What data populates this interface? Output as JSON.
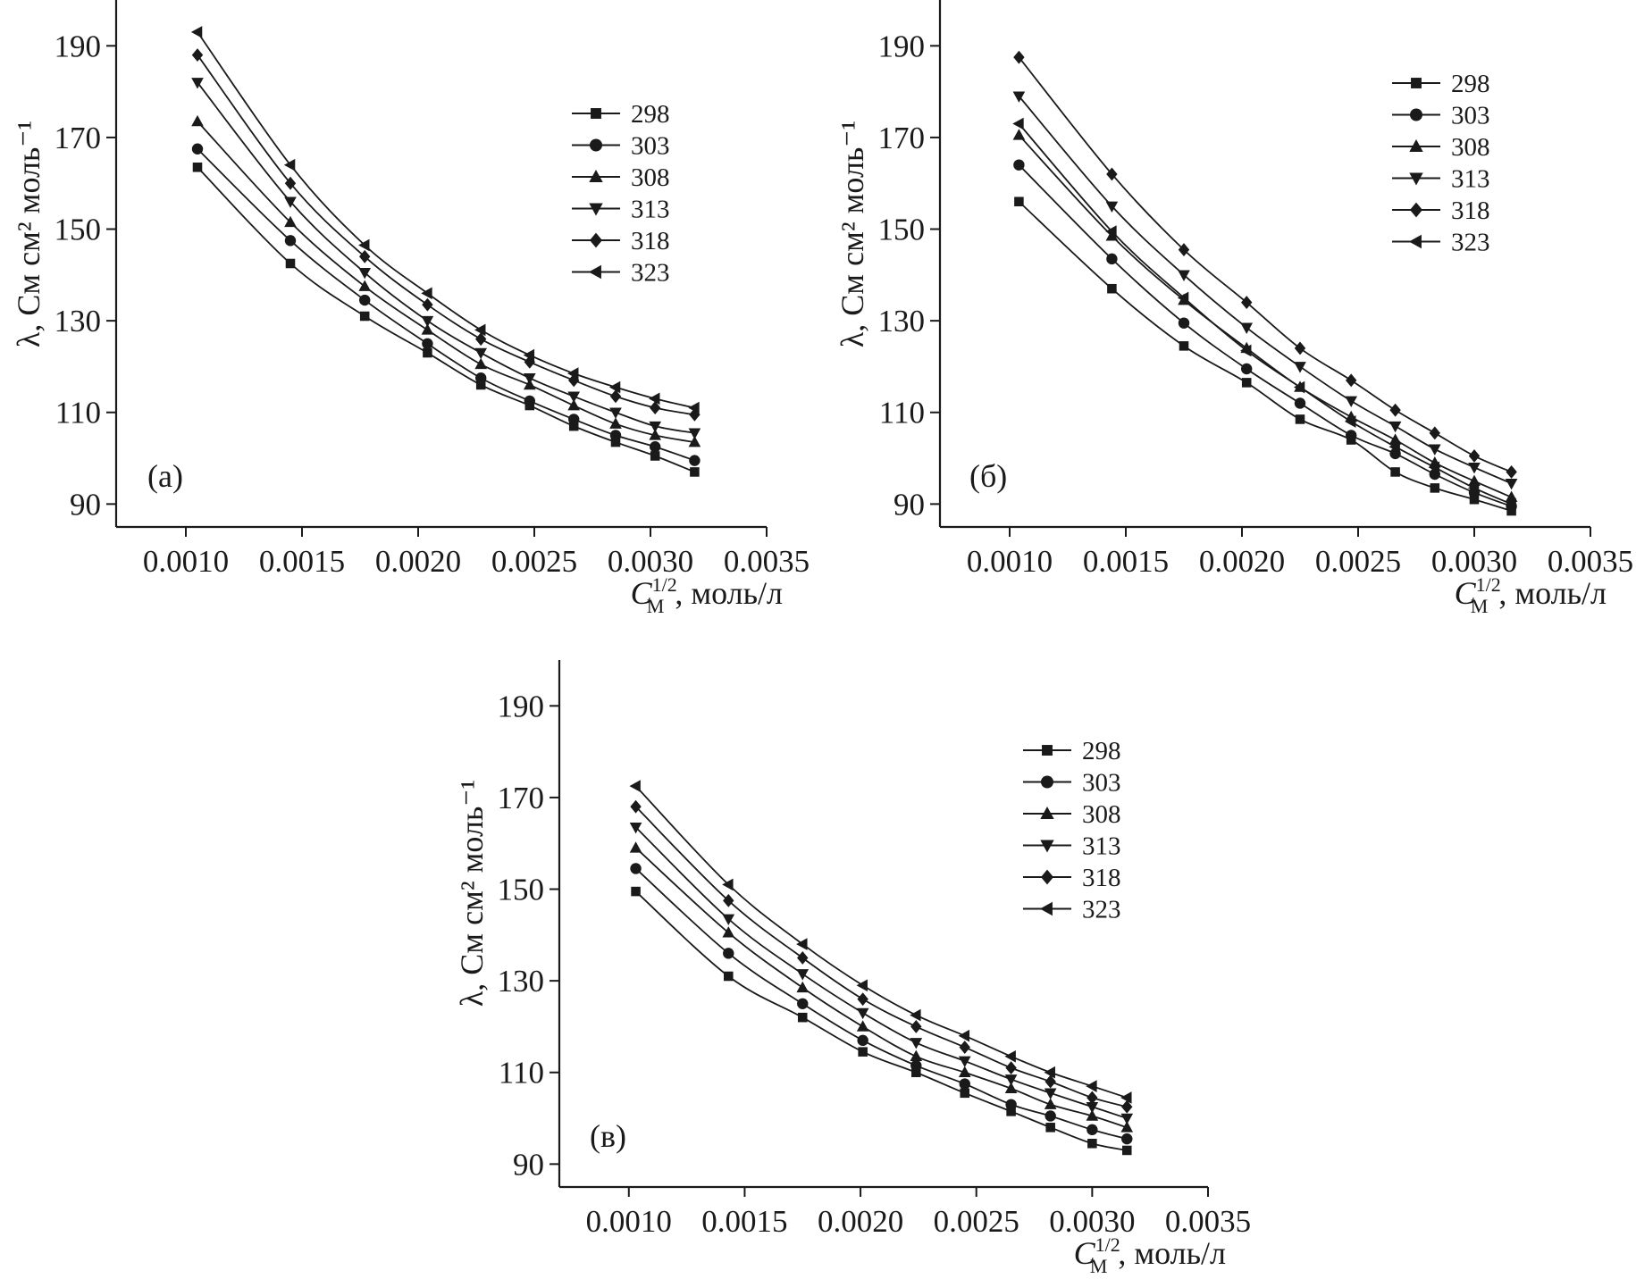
{
  "chart_data": [
    {
      "type": "line",
      "panel_label": "(а)",
      "ylabel": "λ, См см² моль⁻¹",
      "xlabel": {
        "symbol": "C",
        "superscript": "1/2",
        "subscript": "M",
        "unit": ", моль/л"
      },
      "xlim": [
        0.0007,
        0.0035
      ],
      "ylim": [
        85,
        200
      ],
      "xticks": [
        "0.0010",
        "0.0015",
        "0.0020",
        "0.0025",
        "0.0030",
        "0.0035"
      ],
      "yticks": [
        "90",
        "110",
        "130",
        "150",
        "170",
        "190"
      ],
      "x": [
        0.00105,
        0.00145,
        0.00177,
        0.00204,
        0.00227,
        0.00248,
        0.00267,
        0.00285,
        0.00302,
        0.00319
      ],
      "legend_position": "top-right",
      "series": [
        {
          "name": "298",
          "marker": "square",
          "values": [
            163.5,
            142.5,
            131.0,
            123.0,
            116.0,
            111.5,
            107.0,
            103.5,
            100.5,
            97.0
          ]
        },
        {
          "name": "303",
          "marker": "circle",
          "values": [
            167.5,
            147.5,
            134.5,
            125.0,
            117.5,
            112.5,
            108.5,
            105.0,
            102.5,
            99.5
          ]
        },
        {
          "name": "308",
          "marker": "triangle-up",
          "values": [
            173.5,
            151.5,
            137.5,
            128.0,
            120.5,
            116.0,
            111.5,
            107.5,
            105.0,
            103.5
          ]
        },
        {
          "name": "313",
          "marker": "triangle-down",
          "values": [
            182.0,
            156.0,
            140.5,
            130.0,
            123.0,
            117.5,
            113.5,
            110.0,
            107.0,
            105.5
          ]
        },
        {
          "name": "318",
          "marker": "diamond",
          "values": [
            188.0,
            160.0,
            144.0,
            133.5,
            126.0,
            121.0,
            117.0,
            113.5,
            111.0,
            109.5
          ]
        },
        {
          "name": "323",
          "marker": "triangle-left",
          "values": [
            193.0,
            164.0,
            146.5,
            136.0,
            128.0,
            122.5,
            118.5,
            115.5,
            113.0,
            111.0
          ]
        }
      ]
    },
    {
      "type": "line",
      "panel_label": "(б)",
      "ylabel": "λ, См см² моль⁻¹",
      "xlabel": {
        "symbol": "C",
        "superscript": "1/2",
        "subscript": "M",
        "unit": ", моль/л"
      },
      "xlim": [
        0.0007,
        0.0035
      ],
      "ylim": [
        85,
        200
      ],
      "xticks": [
        "0.0010",
        "0.0015",
        "0.0020",
        "0.0025",
        "0.0030",
        "0.0035"
      ],
      "yticks": [
        "90",
        "110",
        "130",
        "150",
        "170",
        "190"
      ],
      "x": [
        0.00104,
        0.00144,
        0.00175,
        0.00202,
        0.00225,
        0.00247,
        0.00266,
        0.00283,
        0.003,
        0.00316
      ],
      "legend_position": "top-right",
      "series": [
        {
          "name": "298",
          "marker": "square",
          "values": [
            156.0,
            137.0,
            124.5,
            116.5,
            108.5,
            104.0,
            97.0,
            93.5,
            91.0,
            88.5
          ]
        },
        {
          "name": "303",
          "marker": "circle",
          "values": [
            164.0,
            143.5,
            129.5,
            119.5,
            112.0,
            105.0,
            101.0,
            96.5,
            92.5,
            89.5
          ]
        },
        {
          "name": "308",
          "marker": "triangle-up",
          "values": [
            170.5,
            148.5,
            134.5,
            124.0,
            115.5,
            109.0,
            104.0,
            99.0,
            95.0,
            91.5
          ]
        },
        {
          "name": "313",
          "marker": "triangle-down",
          "values": [
            179.0,
            155.0,
            140.0,
            128.5,
            120.0,
            112.5,
            107.0,
            102.0,
            98.0,
            94.5
          ]
        },
        {
          "name": "318",
          "marker": "diamond",
          "values": [
            187.5,
            162.0,
            145.5,
            134.0,
            124.0,
            117.0,
            110.5,
            105.5,
            100.5,
            97.0
          ]
        },
        {
          "name": "323",
          "marker": "triangle-left",
          "values": [
            173.0,
            149.5,
            135.0,
            123.5,
            115.5,
            108.0,
            102.5,
            98.0,
            93.5,
            90.0
          ]
        }
      ]
    },
    {
      "type": "line",
      "panel_label": "(в)",
      "ylabel": "λ, См см² моль⁻¹",
      "xlabel": {
        "symbol": "C",
        "superscript": "1/2",
        "subscript": "M",
        "unit": ", моль/л"
      },
      "xlim": [
        0.0007,
        0.0035
      ],
      "ylim": [
        85,
        200
      ],
      "xticks": [
        "0.0010",
        "0.0015",
        "0.0020",
        "0.0025",
        "0.0030",
        "0.0035"
      ],
      "yticks": [
        "90",
        "110",
        "130",
        "150",
        "170",
        "190"
      ],
      "x": [
        0.00103,
        0.00143,
        0.00175,
        0.00201,
        0.00224,
        0.00245,
        0.00265,
        0.00282,
        0.003,
        0.00315
      ],
      "legend_position": "top-right",
      "series": [
        {
          "name": "298",
          "marker": "square",
          "values": [
            149.5,
            131.0,
            122.0,
            114.5,
            110.0,
            105.5,
            101.5,
            98.0,
            94.5,
            93.0
          ]
        },
        {
          "name": "303",
          "marker": "circle",
          "values": [
            154.5,
            136.0,
            125.0,
            117.0,
            111.5,
            107.5,
            103.0,
            100.5,
            97.5,
            95.5
          ]
        },
        {
          "name": "308",
          "marker": "triangle-up",
          "values": [
            159.0,
            140.5,
            128.5,
            120.0,
            113.5,
            110.0,
            106.5,
            103.0,
            100.5,
            98.0
          ]
        },
        {
          "name": "313",
          "marker": "triangle-down",
          "values": [
            163.5,
            143.5,
            131.5,
            123.0,
            116.5,
            112.5,
            108.5,
            105.5,
            102.5,
            100.0
          ]
        },
        {
          "name": "318",
          "marker": "diamond",
          "values": [
            168.0,
            147.5,
            135.0,
            126.0,
            120.0,
            115.5,
            111.0,
            108.0,
            104.5,
            102.5
          ]
        },
        {
          "name": "323",
          "marker": "triangle-left",
          "values": [
            172.5,
            151.0,
            138.0,
            129.0,
            122.5,
            118.0,
            113.5,
            110.0,
            107.0,
            104.5
          ]
        }
      ]
    }
  ]
}
